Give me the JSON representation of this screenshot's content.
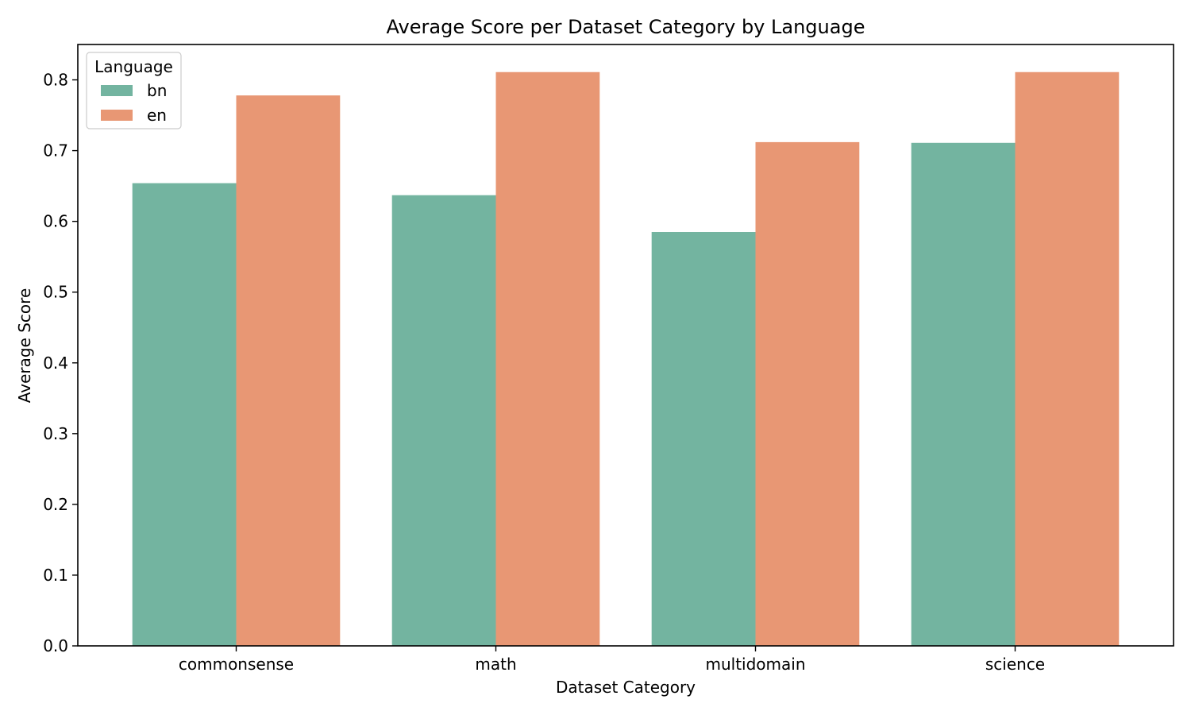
{
  "chart_data": {
    "type": "bar",
    "title": "Average Score per Dataset Category by Language",
    "xlabel": "Dataset Category",
    "ylabel": "Average Score",
    "categories": [
      "commonsense",
      "math",
      "multidomain",
      "science"
    ],
    "series": [
      {
        "name": "bn",
        "color": "#73b4a0",
        "values": [
          0.654,
          0.637,
          0.585,
          0.711
        ]
      },
      {
        "name": "en",
        "color": "#e89774",
        "values": [
          0.778,
          0.811,
          0.712,
          0.811
        ]
      }
    ],
    "ylim": [
      0,
      0.85
    ],
    "yticks": [
      "0.0",
      "0.1",
      "0.2",
      "0.3",
      "0.4",
      "0.5",
      "0.6",
      "0.7",
      "0.8"
    ],
    "legend": {
      "title": "Language",
      "position": "top-left"
    },
    "grid": false
  }
}
